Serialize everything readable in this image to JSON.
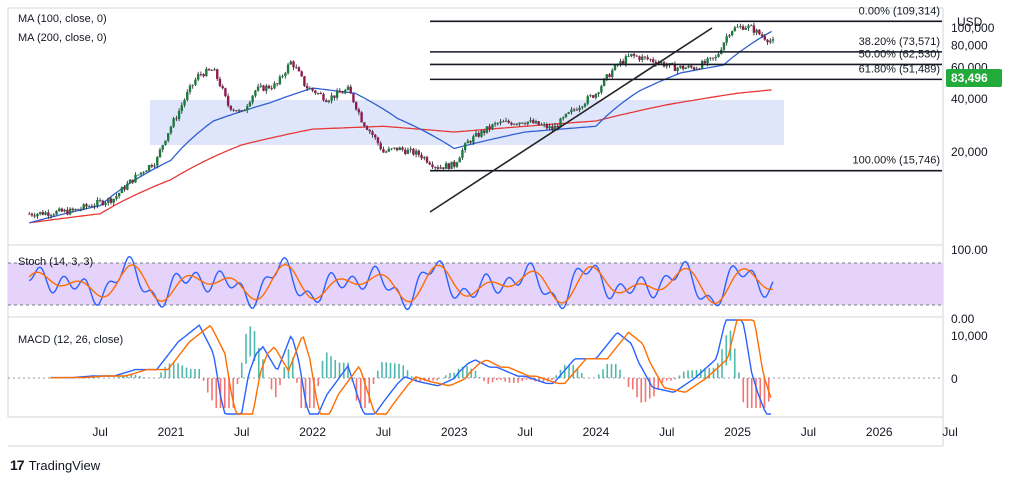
{
  "chart_data": {
    "type": "candlestick",
    "currency": "USD",
    "last_price": "83,496",
    "price_axis": {
      "ticks": [
        "100,000",
        "80,000",
        "60,000",
        "40,000",
        "20,000"
      ],
      "tick_values": [
        100000,
        80000,
        60000,
        40000,
        20000
      ]
    },
    "time_axis": [
      "Jul",
      "2021",
      "Jul",
      "2022",
      "Jul",
      "2023",
      "Jul",
      "2024",
      "Jul",
      "2025",
      "Jul",
      "2026",
      "Jul"
    ],
    "indicators": {
      "ma100_label": "MA (100, close, 0)",
      "ma200_label": "MA (200, close, 0)",
      "stoch_label": "Stoch (14, 3, 3)",
      "macd_label": "MACD (12, 26, close)",
      "stoch_ticks": [
        "100.00",
        "0.00"
      ],
      "macd_ticks": [
        "10,000",
        "0"
      ]
    },
    "fibonacci": [
      {
        "label": "0.00% (109,314)",
        "value": 109314
      },
      {
        "label": "38.20% (73,571)",
        "value": 73571
      },
      {
        "label": "50.00% (62,530)",
        "value": 62530
      },
      {
        "label": "61.80% (51,489)",
        "value": 51489
      },
      {
        "label": "100.00% (15,746)",
        "value": 15746
      }
    ],
    "price_series": [
      [
        2020.0,
        9000
      ],
      [
        2020.3,
        9300
      ],
      [
        2020.6,
        11000
      ],
      [
        2020.9,
        18000
      ],
      [
        2021.05,
        33000
      ],
      [
        2021.2,
        55000
      ],
      [
        2021.3,
        58000
      ],
      [
        2021.4,
        37000
      ],
      [
        2021.5,
        33000
      ],
      [
        2021.6,
        45000
      ],
      [
        2021.75,
        48000
      ],
      [
        2021.85,
        65000
      ],
      [
        2021.95,
        47000
      ],
      [
        2022.1,
        40000
      ],
      [
        2022.25,
        45000
      ],
      [
        2022.35,
        30000
      ],
      [
        2022.5,
        20000
      ],
      [
        2022.6,
        21000
      ],
      [
        2022.75,
        19500
      ],
      [
        2022.88,
        16500
      ],
      [
        2023.0,
        17000
      ],
      [
        2023.1,
        23000
      ],
      [
        2023.3,
        29000
      ],
      [
        2023.5,
        30000
      ],
      [
        2023.7,
        27000
      ],
      [
        2023.85,
        35000
      ],
      [
        2024.0,
        43000
      ],
      [
        2024.15,
        62000
      ],
      [
        2024.25,
        70000
      ],
      [
        2024.4,
        66000
      ],
      [
        2024.55,
        60000
      ],
      [
        2024.7,
        60000
      ],
      [
        2024.85,
        68000
      ],
      [
        2024.95,
        98000
      ],
      [
        2025.05,
        103000
      ],
      [
        2025.1,
        100000
      ],
      [
        2025.15,
        93000
      ],
      [
        2025.25,
        83496
      ]
    ],
    "ma200_series": [
      [
        2020.0,
        8000
      ],
      [
        2020.5,
        9000
      ],
      [
        2021.0,
        14000
      ],
      [
        2021.5,
        22000
      ],
      [
        2022.0,
        27000
      ],
      [
        2022.5,
        28000
      ],
      [
        2023.0,
        26000
      ],
      [
        2023.5,
        28000
      ],
      [
        2024.0,
        30000
      ],
      [
        2024.5,
        37000
      ],
      [
        2025.0,
        43000
      ],
      [
        2025.25,
        45000
      ]
    ],
    "ma100_series": [
      [
        2020.0,
        8000
      ],
      [
        2020.5,
        10000
      ],
      [
        2021.0,
        18000
      ],
      [
        2021.3,
        30000
      ],
      [
        2021.7,
        38000
      ],
      [
        2022.0,
        46000
      ],
      [
        2022.3,
        43000
      ],
      [
        2022.6,
        31000
      ],
      [
        2023.0,
        21000
      ],
      [
        2023.5,
        26000
      ],
      [
        2024.0,
        28000
      ],
      [
        2024.3,
        44000
      ],
      [
        2024.6,
        56000
      ],
      [
        2024.9,
        62000
      ],
      [
        2025.25,
        97000
      ]
    ]
  }
}
